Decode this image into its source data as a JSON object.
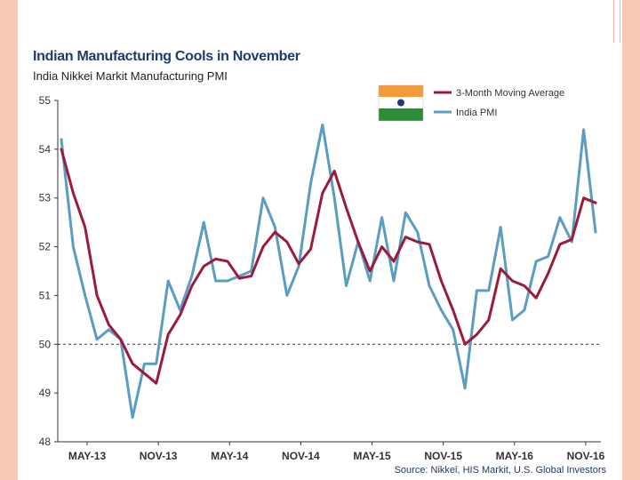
{
  "slide": {
    "border_color": "#f8c9b4"
  },
  "chart_data": {
    "type": "line",
    "title": "Indian Manufacturing Cools in November",
    "subtitle": "India Nikkei Markit Manufacturing PMI",
    "source": "Source: Nikkei, HIS Markit, U.S. Global Investors",
    "xlabel": "",
    "ylabel": "",
    "ylim": [
      48,
      55
    ],
    "yticks": [
      "48",
      "49",
      "50",
      "51",
      "52",
      "53",
      "54",
      "55"
    ],
    "x_tick_labels": [
      "MAY-13",
      "NOV-13",
      "MAY-14",
      "NOV-14",
      "MAY-15",
      "NOV-15",
      "MAY-16",
      "NOV-16"
    ],
    "reference_line": 50,
    "legend_position": "top-right",
    "legend_icon": "india-flag-icon",
    "series": [
      {
        "name": "3-Month Moving Average",
        "color": "#9b1b3c",
        "values": [
          54.0,
          53.1,
          52.4,
          51.0,
          50.4,
          50.1,
          49.6,
          49.4,
          49.2,
          50.2,
          50.6,
          51.2,
          51.6,
          51.75,
          51.7,
          51.35,
          51.4,
          52.0,
          52.3,
          52.1,
          51.65,
          51.95,
          53.1,
          53.55,
          52.8,
          52.1,
          51.5,
          52.0,
          51.7,
          52.2,
          52.1,
          52.05,
          51.3,
          50.7,
          50.0,
          50.2,
          50.5,
          51.55,
          51.3,
          51.2,
          50.95,
          51.45,
          52.05,
          52.15,
          53.0,
          52.9
        ]
      },
      {
        "name": "India PMI",
        "color": "#5b9cc2",
        "values": [
          54.2,
          52.0,
          51.0,
          50.1,
          50.3,
          50.1,
          48.5,
          49.6,
          49.6,
          51.3,
          50.7,
          51.4,
          52.5,
          51.3,
          51.3,
          51.4,
          51.5,
          53.0,
          52.4,
          51.0,
          51.6,
          53.3,
          54.5,
          53.0,
          51.2,
          52.1,
          51.3,
          52.6,
          51.3,
          52.7,
          52.3,
          51.2,
          50.7,
          50.3,
          49.1,
          51.1,
          51.1,
          52.4,
          50.5,
          50.7,
          51.7,
          51.8,
          52.6,
          52.1,
          54.4,
          52.3
        ]
      }
    ]
  }
}
